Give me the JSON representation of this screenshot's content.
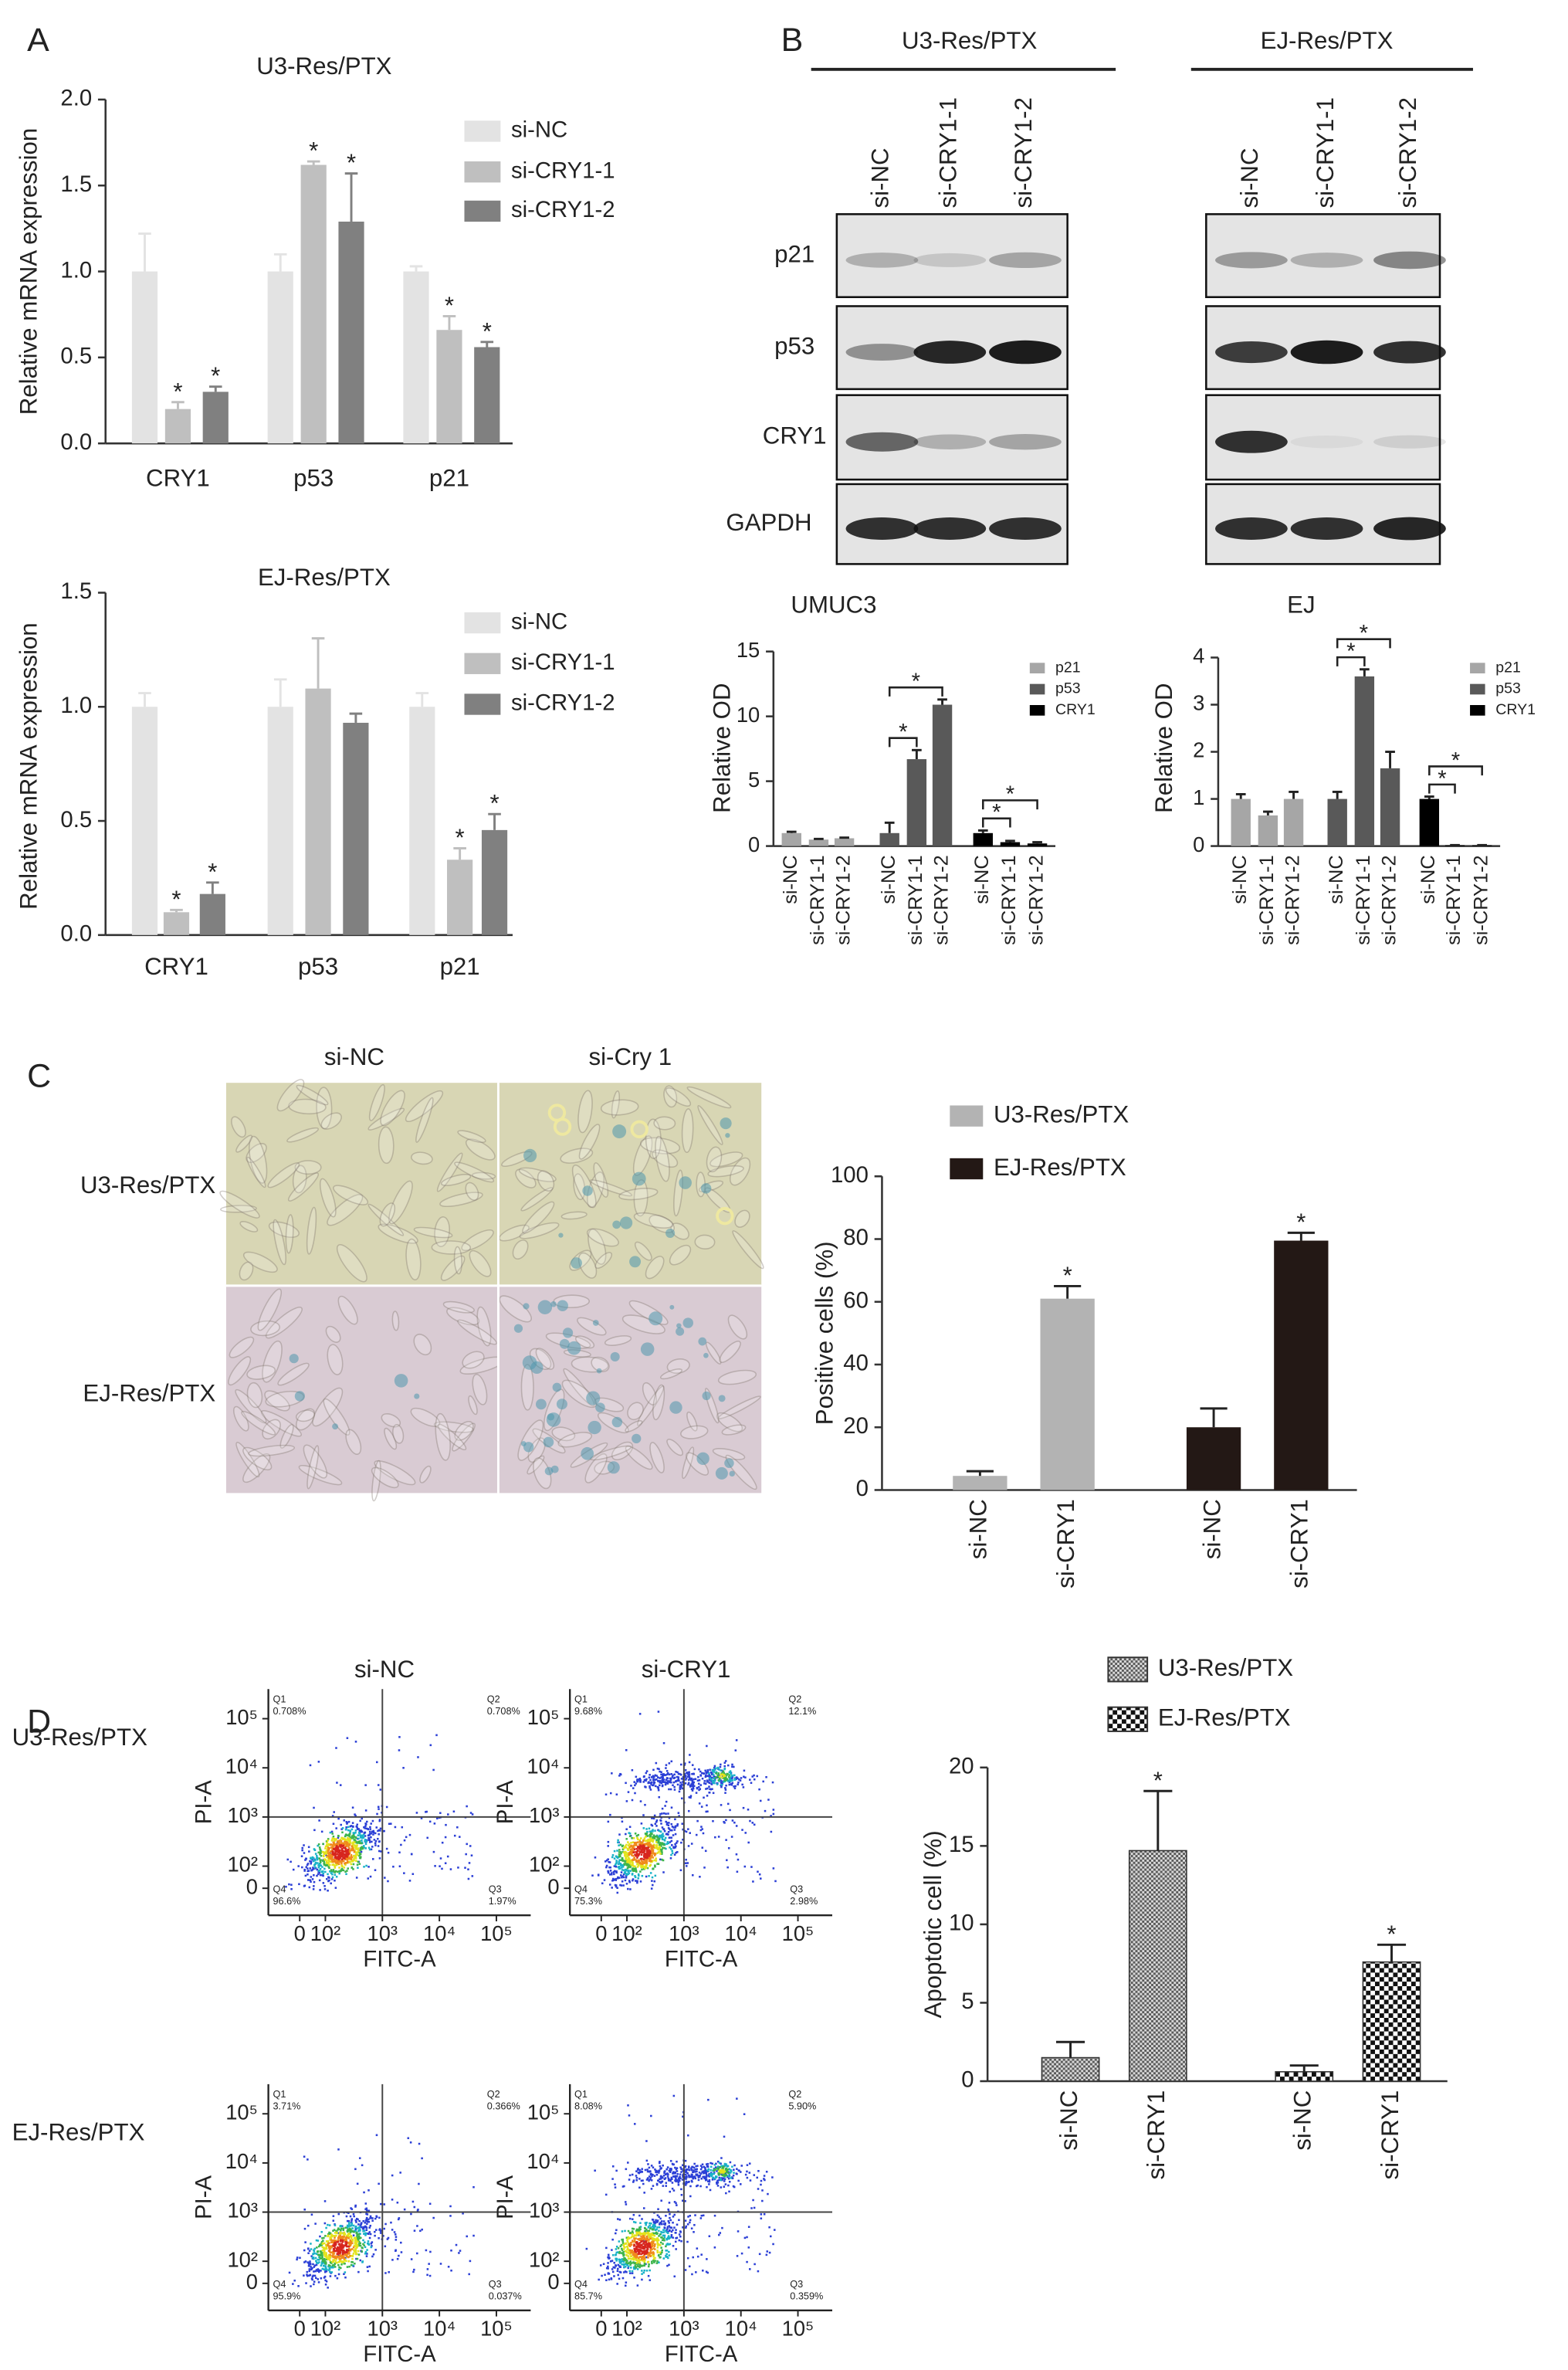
{
  "panel_labels": [
    "A",
    "B",
    "C",
    "D"
  ],
  "chart_data": [
    {
      "type": "bar",
      "title": "U3-Res/PTX",
      "y_label": "Relative mRNA expression",
      "group_by": "category",
      "significance_style": "star",
      "categories": [
        "CRY1",
        "p53",
        "p21"
      ],
      "series": [
        {
          "name": "si-NC",
          "color": "#e3e3e3",
          "values": [
            1.0,
            1.0,
            1.0
          ],
          "errors": [
            0.22,
            0.1,
            0.03
          ]
        },
        {
          "name": "si-CRY1-1",
          "color": "#bfbfbf",
          "values": [
            0.2,
            1.62,
            0.66
          ],
          "errors": [
            0.04,
            0.02,
            0.08
          ],
          "significance": [
            "*",
            "*",
            "*"
          ]
        },
        {
          "name": "si-CRY1-2",
          "color": "#808080",
          "values": [
            0.3,
            1.29,
            0.56
          ],
          "errors": [
            0.03,
            0.28,
            0.03
          ],
          "significance": [
            "*",
            "*",
            "*"
          ]
        }
      ],
      "ylim": [
        0,
        2
      ],
      "yticks": [
        {
          "value": 0,
          "label": "0.0"
        },
        0.5,
        {
          "value": 1,
          "label": "1.0"
        },
        1.5,
        {
          "value": 2,
          "label": "2.0"
        }
      ]
    },
    {
      "type": "bar",
      "title": "EJ-Res/PTX",
      "y_label": "Relative mRNA expression",
      "group_by": "category",
      "significance_style": "star",
      "categories": [
        "CRY1",
        "p53",
        "p21"
      ],
      "series": [
        {
          "name": "si-NC",
          "color": "#e3e3e3",
          "values": [
            1.0,
            1.0,
            1.0
          ],
          "errors": [
            0.06,
            0.12,
            0.06
          ]
        },
        {
          "name": "si-CRY1-1",
          "color": "#bfbfbf",
          "values": [
            0.1,
            1.08,
            0.33
          ],
          "errors": [
            0.01,
            0.22,
            0.05
          ],
          "significance": [
            "*",
            null,
            "*"
          ]
        },
        {
          "name": "si-CRY1-2",
          "color": "#808080",
          "values": [
            0.18,
            0.93,
            0.46
          ],
          "errors": [
            0.05,
            0.04,
            0.07
          ],
          "significance": [
            "*",
            null,
            "*"
          ]
        }
      ],
      "ylim": [
        0,
        1.5
      ],
      "yticks": [
        {
          "value": 0,
          "label": "0.0"
        },
        0.5,
        {
          "value": 1,
          "label": "1.0"
        },
        1.5
      ]
    },
    {
      "type": "bar",
      "title": "UMUC3",
      "y_label": "Relative OD",
      "group_by": "series",
      "significance_style": "bracket",
      "categories": [
        "si-NC",
        "si-CRY1-1",
        "si-CRY1-2"
      ],
      "series": [
        {
          "name": "p21",
          "color": "#a6a6a6",
          "values": [
            1.0,
            0.5,
            0.6
          ],
          "errors": [
            0.1,
            0.05,
            0.05
          ]
        },
        {
          "name": "p53",
          "color": "#595959",
          "values": [
            1.0,
            6.7,
            10.9
          ],
          "errors": [
            0.8,
            0.7,
            0.4
          ],
          "significance": [
            null,
            "*",
            "*"
          ]
        },
        {
          "name": "CRY1",
          "color": "#000000",
          "values": [
            1.0,
            0.3,
            0.2
          ],
          "errors": [
            0.2,
            0.1,
            0.1
          ],
          "significance": [
            null,
            "*",
            "*"
          ]
        }
      ],
      "ylim": [
        0,
        15
      ],
      "yticks": [
        0,
        5,
        10,
        15
      ]
    },
    {
      "type": "bar",
      "title": "EJ",
      "y_label": "Relative OD",
      "group_by": "series",
      "significance_style": "bracket",
      "categories": [
        "si-NC",
        "si-CRY1-1",
        "si-CRY1-2"
      ],
      "series": [
        {
          "name": "p21",
          "color": "#a6a6a6",
          "values": [
            1.0,
            0.65,
            1.0
          ],
          "errors": [
            0.1,
            0.08,
            0.15
          ]
        },
        {
          "name": "p53",
          "color": "#595959",
          "values": [
            1.0,
            3.6,
            1.65
          ],
          "errors": [
            0.15,
            0.15,
            0.35
          ],
          "significance": [
            null,
            "*",
            "*"
          ]
        },
        {
          "name": "CRY1",
          "color": "#000000",
          "values": [
            1.0,
            0.02,
            0.02
          ],
          "errors": [
            0.05,
            0,
            0
          ],
          "significance": [
            null,
            "*",
            "*"
          ]
        }
      ],
      "ylim": [
        0,
        4
      ],
      "yticks": [
        0,
        1,
        2,
        3,
        4
      ]
    },
    {
      "type": "bar",
      "y_label": "Positive cells (%)",
      "group_by": "series",
      "significance_style": "star",
      "categories": [
        "si-NC",
        "si-CRY1"
      ],
      "series": [
        {
          "name": "U3-Res/PTX",
          "color": "#b3b3b3",
          "values": [
            4.5,
            61
          ],
          "errors": [
            1.5,
            4
          ],
          "significance": [
            null,
            "*"
          ]
        },
        {
          "name": "EJ-Res/PTX",
          "color": "#231815",
          "values": [
            20,
            79.5
          ],
          "errors": [
            6,
            2.5
          ],
          "significance": [
            null,
            "*"
          ]
        }
      ],
      "ylim": [
        0,
        100
      ],
      "yticks": [
        0,
        20,
        40,
        60,
        80,
        100
      ]
    },
    {
      "type": "bar",
      "y_label": "Apoptotic cell (%)",
      "group_by": "series",
      "significance_style": "star",
      "categories": [
        "si-NC",
        "si-CRY1"
      ],
      "series": [
        {
          "name": "U3-Res/PTX",
          "color": "#5a5a5a",
          "pattern": "checker",
          "values": [
            1.5,
            14.7
          ],
          "errors": [
            1.0,
            3.8
          ],
          "significance": [
            null,
            "*"
          ]
        },
        {
          "name": "EJ-Res/PTX",
          "color": "#111111",
          "pattern": "checker",
          "values": [
            0.6,
            7.6
          ],
          "errors": [
            0.4,
            1.1
          ],
          "significance": [
            null,
            "*"
          ]
        }
      ],
      "ylim": [
        0,
        20
      ],
      "yticks": [
        0,
        5,
        10,
        15,
        20
      ]
    }
  ],
  "blots": {
    "groups": [
      "U3-Res/PTX",
      "EJ-Res/PTX"
    ],
    "lanes": [
      "si-NC",
      "si-CRY1-1",
      "si-CRY1-2"
    ],
    "rows": [
      "p21",
      "p53",
      "CRY1",
      "GAPDH"
    ]
  },
  "micrographs": {
    "columns": [
      "si-NC",
      "si-Cry 1"
    ],
    "rows": [
      "U3-Res/PTX",
      "EJ-Res/PTX"
    ]
  },
  "flow": {
    "columns": [
      "si-NC",
      "si-CRY1"
    ],
    "rows": [
      "U3-Res/PTX",
      "EJ-Res/PTX"
    ],
    "x_label": "FITC-A",
    "y_label": "PI-A",
    "quadrants": [
      "Q1",
      "Q2",
      "Q3",
      "Q4"
    ],
    "xlim": [
      10,
      400000
    ],
    "ylim": [
      10,
      400000
    ],
    "xticks": [
      0,
      {
        "value": 100,
        "label": "10²"
      },
      {
        "value": 1000,
        "label": "10³"
      },
      {
        "value": 10000,
        "label": "10⁴"
      },
      {
        "value": 100000,
        "label": "10⁵"
      }
    ],
    "yticks": [
      0,
      {
        "value": 100,
        "label": "10²"
      },
      {
        "value": 1000,
        "label": "10³"
      },
      {
        "value": 10000,
        "label": "10⁴"
      },
      {
        "value": 100000,
        "label": "10⁵"
      }
    ],
    "plots": [
      [
        [
          "0.708%",
          "0.708%",
          "1.97%",
          "96.6%"
        ],
        [
          "9.68%",
          "12.1%",
          "2.98%",
          "75.3%"
        ]
      ],
      [
        [
          "3.71%",
          "0.366%",
          "0.037%",
          "95.9%"
        ],
        [
          "8.08%",
          "5.90%",
          "0.359%",
          "85.7%"
        ]
      ]
    ]
  }
}
